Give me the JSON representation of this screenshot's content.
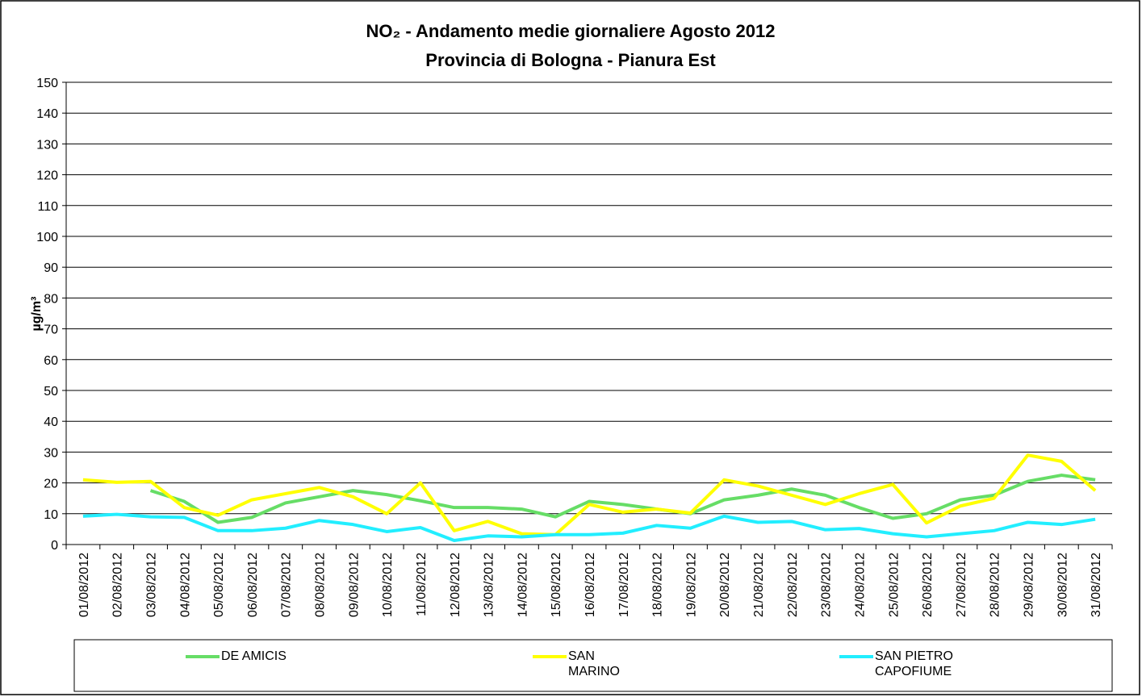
{
  "chart_data": {
    "type": "line",
    "title": "NO₂ - Andamento medie giornaliere Agosto 2012",
    "subtitle": "Provincia di Bologna - Pianura Est",
    "y_label": "µg/m³",
    "categories": [
      "01/08/2012",
      "02/08/2012",
      "03/08/2012",
      "04/08/2012",
      "05/08/2012",
      "06/08/2012",
      "07/08/2012",
      "08/08/2012",
      "09/08/2012",
      "10/08/2012",
      "11/08/2012",
      "12/08/2012",
      "13/08/2012",
      "14/08/2012",
      "15/08/2012",
      "16/08/2012",
      "17/08/2012",
      "18/08/2012",
      "19/08/2012",
      "20/08/2012",
      "21/08/2012",
      "22/08/2012",
      "23/08/2012",
      "24/08/2012",
      "25/08/2012",
      "26/08/2012",
      "27/08/2012",
      "28/08/2012",
      "29/08/2012",
      "30/08/2012",
      "31/08/2012"
    ],
    "series": [
      {
        "name": "DE AMICIS",
        "color": "#66dd66",
        "values": [
          null,
          null,
          17.5,
          14,
          7.2,
          8.8,
          13.5,
          15.5,
          17.5,
          16.2,
          14.2,
          12,
          12,
          11.5,
          9,
          14,
          13,
          11.5,
          10,
          14.5,
          16,
          18,
          16,
          12,
          8.5,
          10,
          14.5,
          16,
          20.5,
          22.5,
          21
        ]
      },
      {
        "name": "SAN MARINO",
        "color": "#ffff00",
        "values": [
          21,
          20.2,
          20.5,
          12,
          9.5,
          14.5,
          16.5,
          18.5,
          15.5,
          10,
          20,
          4.5,
          7.5,
          3.5,
          3.2,
          13,
          10.5,
          11.5,
          10.2,
          21,
          19,
          16,
          13,
          16.5,
          19.5,
          7,
          12.5,
          15,
          29,
          27,
          17.5
        ]
      },
      {
        "name": "SAN PIETRO CAPOFIUME",
        "color": "#22eeff",
        "values": [
          9.2,
          9.8,
          9,
          8.8,
          4.5,
          4.5,
          5.3,
          7.8,
          6.5,
          4.2,
          5.5,
          1.3,
          2.8,
          2.5,
          3.2,
          3.2,
          3.7,
          6.2,
          5.3,
          9.2,
          7.2,
          7.5,
          4.8,
          5.2,
          3.5,
          2.5,
          3.5,
          4.5,
          7.2,
          6.5,
          8.2
        ]
      }
    ],
    "ylim": [
      0,
      150
    ],
    "yticks": [
      0,
      10,
      20,
      30,
      40,
      50,
      60,
      70,
      80,
      90,
      100,
      110,
      120,
      130,
      140,
      150
    ],
    "grid": true
  }
}
